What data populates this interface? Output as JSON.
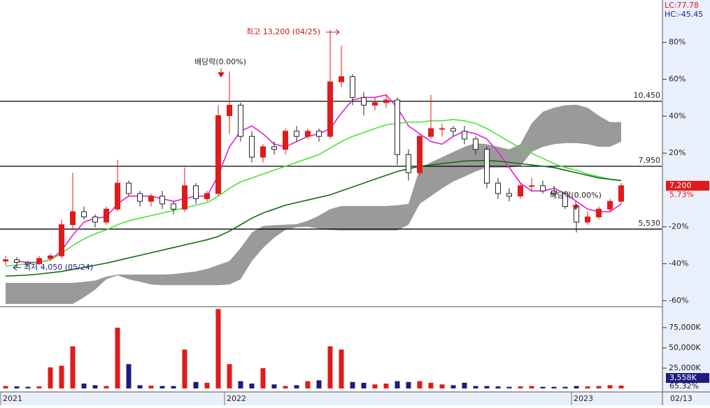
{
  "chart_data": {
    "type": "candlestick",
    "categories": [
      "2021",
      null,
      null,
      null,
      null,
      null,
      null,
      null,
      null,
      null,
      null,
      null,
      null,
      null,
      null,
      null,
      null,
      null,
      null,
      null,
      "2022",
      null,
      null,
      null,
      null,
      null,
      null,
      null,
      null,
      null,
      null,
      null,
      null,
      null,
      null,
      null,
      null,
      null,
      null,
      null,
      null,
      null,
      null,
      null,
      null,
      null,
      null,
      null,
      null,
      null,
      null,
      "2023",
      null,
      null,
      null,
      null
    ],
    "open": [
      4300,
      4350,
      4250,
      4200,
      4400,
      4500,
      5700,
      6200,
      6000,
      5800,
      6300,
      7300,
      6900,
      6600,
      6800,
      6500,
      6300,
      7200,
      6700,
      6900,
      9900,
      10300,
      9100,
      8300,
      8700,
      8600,
      9300,
      9100,
      9300,
      9100,
      11200,
      11400,
      10600,
      10300,
      10400,
      10500,
      8400,
      7700,
      9100,
      9400,
      9400,
      9300,
      9000,
      8600,
      7300,
      6900,
      6800,
      7200,
      7200,
      7000,
      6900,
      6400,
      5800,
      6000,
      6300,
      6600
    ],
    "high": [
      4500,
      4450,
      4300,
      4500,
      4600,
      5900,
      7700,
      6400,
      6100,
      6400,
      8200,
      7400,
      7000,
      6900,
      7000,
      6600,
      7900,
      7300,
      7000,
      10300,
      11600,
      10400,
      9300,
      8800,
      8900,
      9400,
      9500,
      9400,
      9400,
      13200,
      12600,
      11500,
      10800,
      10600,
      10700,
      10600,
      8600,
      9200,
      10700,
      9600,
      9500,
      9500,
      9100,
      8700,
      7500,
      7100,
      7300,
      7500,
      7400,
      7200,
      7000,
      6500,
      6200,
      6400,
      6700,
      7300
    ],
    "low": [
      4150,
      4050,
      4100,
      4150,
      4300,
      4400,
      5500,
      5900,
      5600,
      5700,
      6200,
      6800,
      6400,
      6400,
      6300,
      6100,
      6200,
      6500,
      6600,
      6800,
      9200,
      8900,
      8100,
      8100,
      8400,
      8400,
      8900,
      9000,
      8900,
      9000,
      11000,
      10300,
      9900,
      10100,
      10200,
      8000,
      7400,
      7600,
      9000,
      9100,
      9100,
      8800,
      8400,
      7100,
      6700,
      6600,
      6700,
      7000,
      6900,
      6800,
      6300,
      5400,
      5700,
      5900,
      6200,
      6500
    ],
    "close": [
      4350,
      4250,
      4200,
      4400,
      4500,
      5700,
      6200,
      6000,
      5800,
      6300,
      7300,
      6900,
      6600,
      6800,
      6500,
      6300,
      7200,
      6700,
      6900,
      9900,
      10300,
      9100,
      8300,
      8700,
      8600,
      9300,
      9100,
      9300,
      9100,
      11200,
      11400,
      10600,
      10300,
      10400,
      10500,
      8400,
      7700,
      9100,
      9400,
      9400,
      9300,
      9000,
      8600,
      7300,
      6900,
      6800,
      7200,
      7200,
      7000,
      6900,
      6400,
      5800,
      6000,
      6300,
      6600,
      7200
    ],
    "up_color": "#e01b1b",
    "down_color": "#1c1c80",
    "down_fill": "#ffffff",
    "ylim": [
      2570,
      14350
    ],
    "y2lim": [
      -62.9,
      103
    ],
    "y2ticks": [
      {
        "value": 80,
        "label": "80%"
      },
      {
        "value": 60,
        "label": "60%"
      },
      {
        "value": 40,
        "label": "40%"
      },
      {
        "value": 20,
        "label": "20%"
      },
      {
        "value": -20,
        "label": "-20%"
      },
      {
        "value": -40,
        "label": "-40%"
      },
      {
        "value": -60,
        "label": "-60%"
      }
    ],
    "levels": [
      {
        "value": 10450,
        "label": "10,450"
      },
      {
        "value": 7950,
        "label": "7,950"
      },
      {
        "value": 5530,
        "label": "5,530"
      }
    ],
    "series": [
      {
        "color": "#e020d0",
        "values": [
          null,
          4300,
          4250,
          4250,
          4350,
          4700,
          5300,
          5800,
          5950,
          6000,
          6500,
          6800,
          6800,
          6800,
          6700,
          6600,
          6700,
          6800,
          6800,
          7600,
          8700,
          9300,
          9500,
          9200,
          8800,
          8700,
          8900,
          9100,
          9200,
          9400,
          10000,
          10500,
          10600,
          10600,
          10700,
          10200,
          9500,
          9200,
          8900,
          8800,
          9100,
          9300,
          9200,
          9000,
          8500,
          7900,
          7300,
          7000,
          7000,
          7100,
          6900,
          6600,
          6300,
          6200,
          6200,
          6500
        ]
      },
      {
        "color": "#4ee03c",
        "values": [
          4100,
          4150,
          4200,
          4250,
          4350,
          4600,
          4900,
          5150,
          5350,
          5500,
          5700,
          5850,
          5950,
          6050,
          6150,
          6250,
          6350,
          6450,
          6550,
          6800,
          7100,
          7350,
          7500,
          7650,
          7800,
          7950,
          8100,
          8250,
          8400,
          8650,
          8900,
          9100,
          9250,
          9400,
          9550,
          9600,
          9650,
          9650,
          9700,
          9700,
          9750,
          9700,
          9600,
          9400,
          9150,
          8900,
          8650,
          8450,
          8250,
          8050,
          7900,
          7800,
          7650,
          7550,
          7450,
          7400
        ]
      },
      {
        "color": "#0f6e0f",
        "values": [
          3720,
          3740,
          3760,
          3800,
          3850,
          3900,
          3980,
          4060,
          4140,
          4220,
          4320,
          4420,
          4520,
          4620,
          4720,
          4820,
          4920,
          5020,
          5120,
          5250,
          5450,
          5700,
          5950,
          6150,
          6300,
          6450,
          6550,
          6650,
          6750,
          6850,
          7000,
          7150,
          7300,
          7450,
          7600,
          7750,
          7850,
          7950,
          8000,
          8050,
          8100,
          8150,
          8170,
          8170,
          8150,
          8100,
          8050,
          8000,
          7950,
          7900,
          7800,
          7700,
          7600,
          7500,
          7450,
          7400
        ]
      }
    ],
    "cloud": {
      "color": "#9a9a9a",
      "upper": [
        3460,
        3460,
        3460,
        3460,
        3460,
        3460,
        3460,
        3500,
        3550,
        3700,
        3780,
        3780,
        3780,
        3780,
        3780,
        3800,
        3850,
        3900,
        4000,
        4150,
        4300,
        4800,
        5400,
        5650,
        5680,
        5700,
        5720,
        5850,
        6050,
        6300,
        6420,
        6420,
        6420,
        6420,
        6420,
        6450,
        6500,
        7850,
        8100,
        8300,
        8500,
        8700,
        8840,
        8800,
        8700,
        8600,
        8800,
        9600,
        10050,
        10200,
        10300,
        10320,
        10200,
        9900,
        9650,
        9650
      ],
      "lower": [
        2650,
        2650,
        2650,
        2650,
        2650,
        2650,
        2650,
        2900,
        3200,
        3600,
        3750,
        3600,
        3500,
        3400,
        3370,
        3370,
        3370,
        3370,
        3370,
        3370,
        3400,
        3600,
        4300,
        4800,
        5200,
        5500,
        5600,
        5620,
        5550,
        5500,
        5480,
        5480,
        5480,
        5480,
        5480,
        5480,
        5700,
        6500,
        6800,
        7100,
        7360,
        7550,
        7750,
        7900,
        7900,
        7900,
        7950,
        8500,
        8700,
        8800,
        8840,
        8840,
        8800,
        8700,
        8700,
        8900
      ]
    },
    "volume": {
      "values": [
        3000,
        2500,
        2000,
        2500,
        26000,
        28000,
        52000,
        6000,
        4000,
        3000,
        75000,
        30000,
        4000,
        3500,
        3000,
        3000,
        48000,
        8000,
        7000,
        98000,
        30000,
        9000,
        6000,
        25000,
        5000,
        3000,
        4000,
        9000,
        10000,
        52000,
        48000,
        8000,
        7000,
        5000,
        6000,
        9000,
        8000,
        9000,
        7000,
        5000,
        4000,
        7000,
        3000,
        3000,
        2500,
        2000,
        2500,
        3000,
        2000,
        2000,
        2000,
        3000,
        2500,
        3000,
        4000,
        3558
      ],
      "ylim": [
        0,
        100000
      ],
      "yticks": [
        {
          "value": 75000,
          "label": "75,000K"
        },
        {
          "value": 50000,
          "label": "50,000K"
        },
        {
          "value": 25000,
          "label": "25,000K"
        }
      ],
      "last": {
        "value": 3558,
        "label": "3,558K"
      },
      "ratio": {
        "value": 65.32,
        "label": "65.32%"
      }
    },
    "last_price": {
      "value": 7200,
      "label": "7,200"
    },
    "last_change": {
      "value": 5.73,
      "label": "5.73%"
    },
    "lc_label": "LC:77.78",
    "hc_label": "HC:-45.45",
    "date_label": "02/13",
    "annotations": {
      "high": "최고 13,200 (04/25)",
      "low": "최저 4,050 (05/24)",
      "dividend": [
        "배당락(0.00%)",
        "배당락(0.00%)"
      ]
    }
  }
}
